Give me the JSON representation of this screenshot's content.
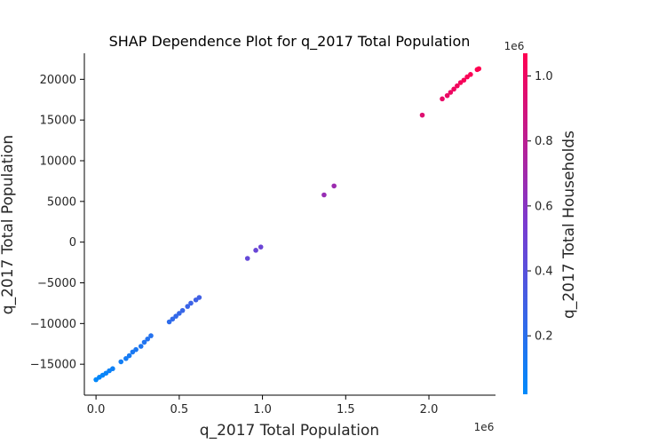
{
  "chart_data": {
    "type": "scatter",
    "title": "SHAP Dependence Plot for q_2017 Total Population",
    "xlabel": "q_2017 Total Population",
    "ylabel": "q_2017 Total Population",
    "x_offset_label": "1e6",
    "xlim": [
      -0.07,
      2.4
    ],
    "ylim": [
      -18800,
      23200
    ],
    "x_ticks": [
      0.0,
      0.5,
      1.0,
      1.5,
      2.0
    ],
    "x_tick_labels": [
      "0.0",
      "0.5",
      "1.0",
      "1.5",
      "2.0"
    ],
    "y_ticks": [
      -15000,
      -10000,
      -5000,
      0,
      5000,
      10000,
      15000,
      20000
    ],
    "y_tick_labels": [
      "−15000",
      "−10000",
      "−5000",
      "0",
      "5000",
      "10000",
      "15000",
      "20000"
    ],
    "colorbar": {
      "label": "q_2017 Total Households",
      "offset_label": "1e6",
      "range": [
        0.02,
        1.07
      ],
      "ticks": [
        0.2,
        0.4,
        0.6,
        0.8,
        1.0
      ],
      "tick_labels": [
        "0.2",
        "0.4",
        "0.6",
        "0.8",
        "1.0"
      ],
      "color_low": "#008afb",
      "color_high": "#ff0051"
    },
    "points": [
      {
        "x": 0.0,
        "y": -16900,
        "c": 0.03
      },
      {
        "x": 0.02,
        "y": -16600,
        "c": 0.04
      },
      {
        "x": 0.04,
        "y": -16350,
        "c": 0.05
      },
      {
        "x": 0.06,
        "y": -16100,
        "c": 0.06
      },
      {
        "x": 0.08,
        "y": -15800,
        "c": 0.07
      },
      {
        "x": 0.1,
        "y": -15550,
        "c": 0.08
      },
      {
        "x": 0.15,
        "y": -14700,
        "c": 0.1
      },
      {
        "x": 0.18,
        "y": -14300,
        "c": 0.11
      },
      {
        "x": 0.2,
        "y": -13950,
        "c": 0.12
      },
      {
        "x": 0.22,
        "y": -13500,
        "c": 0.13
      },
      {
        "x": 0.24,
        "y": -13200,
        "c": 0.14
      },
      {
        "x": 0.27,
        "y": -12800,
        "c": 0.15
      },
      {
        "x": 0.29,
        "y": -12300,
        "c": 0.16
      },
      {
        "x": 0.31,
        "y": -11900,
        "c": 0.17
      },
      {
        "x": 0.33,
        "y": -11500,
        "c": 0.18
      },
      {
        "x": 0.44,
        "y": -9800,
        "c": 0.22
      },
      {
        "x": 0.46,
        "y": -9450,
        "c": 0.23
      },
      {
        "x": 0.48,
        "y": -9100,
        "c": 0.24
      },
      {
        "x": 0.5,
        "y": -8750,
        "c": 0.25
      },
      {
        "x": 0.52,
        "y": -8400,
        "c": 0.26
      },
      {
        "x": 0.55,
        "y": -7900,
        "c": 0.27
      },
      {
        "x": 0.57,
        "y": -7500,
        "c": 0.28
      },
      {
        "x": 0.6,
        "y": -7100,
        "c": 0.29
      },
      {
        "x": 0.62,
        "y": -6800,
        "c": 0.3
      },
      {
        "x": 0.91,
        "y": -2000,
        "c": 0.45
      },
      {
        "x": 0.96,
        "y": -1000,
        "c": 0.47
      },
      {
        "x": 0.99,
        "y": -600,
        "c": 0.48
      },
      {
        "x": 1.37,
        "y": 5800,
        "c": 0.66
      },
      {
        "x": 1.43,
        "y": 6900,
        "c": 0.68
      },
      {
        "x": 1.96,
        "y": 15600,
        "c": 0.94
      },
      {
        "x": 2.08,
        "y": 17600,
        "c": 0.98
      },
      {
        "x": 2.11,
        "y": 18000,
        "c": 0.99
      },
      {
        "x": 2.13,
        "y": 18400,
        "c": 1.0
      },
      {
        "x": 2.15,
        "y": 18800,
        "c": 1.01
      },
      {
        "x": 2.17,
        "y": 19200,
        "c": 1.02
      },
      {
        "x": 2.19,
        "y": 19600,
        "c": 1.03
      },
      {
        "x": 2.21,
        "y": 19900,
        "c": 1.04
      },
      {
        "x": 2.23,
        "y": 20300,
        "c": 1.05
      },
      {
        "x": 2.25,
        "y": 20600,
        "c": 1.05
      },
      {
        "x": 2.29,
        "y": 21200,
        "c": 1.06
      },
      {
        "x": 2.3,
        "y": 21300,
        "c": 1.07
      }
    ]
  }
}
